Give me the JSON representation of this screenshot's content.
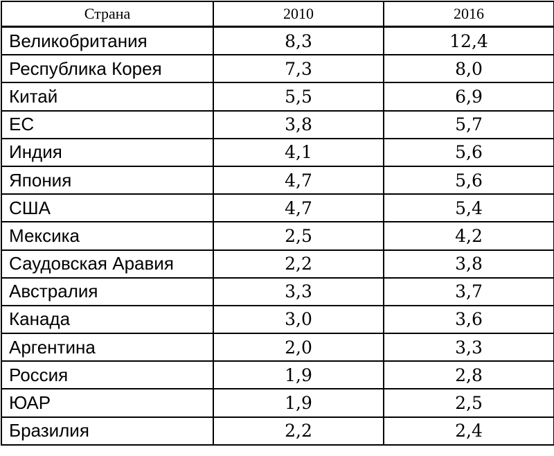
{
  "table": {
    "header": [
      "Страна",
      "2010",
      "2016"
    ],
    "rows": [
      [
        "Великобритания",
        "8,3",
        "12,4"
      ],
      [
        "Республика Корея",
        "7,3",
        "8,0"
      ],
      [
        "Китай",
        "5,5",
        "6,9"
      ],
      [
        "ЕС",
        "3,8",
        "5,7"
      ],
      [
        "Индия",
        "4,1",
        "5,6"
      ],
      [
        "Япония",
        "4,7",
        "5,6"
      ],
      [
        "США",
        "4,7",
        "5,4"
      ],
      [
        "Мексика",
        "2,5",
        "4,2"
      ],
      [
        "Саудовская Аравия",
        "2,2",
        "3,8"
      ],
      [
        "Австралия",
        "3,3",
        "3,7"
      ],
      [
        "Канада",
        "3,0",
        "3,6"
      ],
      [
        "Аргентина",
        "2,0",
        "3,3"
      ],
      [
        "Россия",
        "1,9",
        "2,8"
      ],
      [
        "ЮАР",
        "1,9",
        "2,5"
      ],
      [
        "Бразилия",
        "2,2",
        "2,4"
      ]
    ]
  }
}
